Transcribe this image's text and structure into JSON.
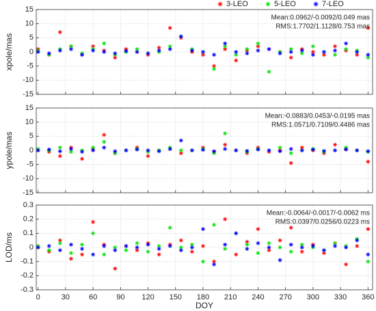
{
  "chart_data": [
    {
      "type": "scatter",
      "ylabel": "xpole/mas",
      "annotations": [
        "Mean:0.0962/-0.0092/0.049 mas",
        "RMS:1.7702/1.1128/0.753 mas"
      ],
      "x": [
        0,
        12,
        24,
        36,
        48,
        60,
        72,
        84,
        96,
        108,
        120,
        132,
        144,
        156,
        168,
        180,
        192,
        204,
        216,
        228,
        240,
        252,
        264,
        276,
        288,
        300,
        312,
        324,
        336,
        348,
        360
      ],
      "series": [
        {
          "name": "3-LEO",
          "color": "#ff0000",
          "values": [
            1,
            -1,
            7,
            2,
            -1,
            2,
            0.5,
            -2,
            1,
            0,
            -1,
            1.5,
            8.5,
            5,
            0,
            -1,
            -5,
            1,
            -3,
            0.5,
            2,
            1,
            0,
            -2,
            1,
            0,
            -1,
            2,
            0.5,
            -1,
            8.5
          ]
        },
        {
          "name": "5-LEO",
          "color": "#00e000",
          "values": [
            0.5,
            -1,
            1,
            2,
            -0.5,
            1,
            3,
            -1,
            0,
            1,
            -0.5,
            0,
            2,
            5.5,
            1,
            0,
            -6,
            2,
            -1,
            1,
            3,
            -7,
            0,
            1,
            -0.5,
            2,
            0,
            -1,
            1,
            0.5,
            -2
          ]
        },
        {
          "name": "7-LEO",
          "color": "#0000ff",
          "values": [
            0,
            -0.5,
            0.5,
            1,
            -1,
            0.5,
            0,
            -0.5,
            0.3,
            0,
            -0.5,
            0.5,
            1,
            5.5,
            0.5,
            0,
            -1,
            3,
            0,
            -0.5,
            0.5,
            1,
            -0.5,
            0,
            0.5,
            -1,
            0,
            0.5,
            3,
            0,
            -1
          ]
        }
      ],
      "xlim": [
        -2,
        365
      ],
      "xticks": [
        0,
        30,
        60,
        90,
        120,
        150,
        180,
        210,
        240,
        270,
        300,
        330,
        360
      ],
      "ylim": [
        -15,
        15
      ],
      "yticks": [
        -15,
        -10,
        -5,
        0,
        5,
        10,
        15
      ],
      "grid": true,
      "legend": "top-right"
    },
    {
      "type": "scatter",
      "ylabel": "ypole/mas",
      "annotations": [
        "Mean:-0.0883/0.0453/-0.0195 mas",
        "RMS:1.0571/0.7109/0.4486 mas"
      ],
      "x": [
        0,
        12,
        24,
        36,
        48,
        60,
        72,
        84,
        96,
        108,
        120,
        132,
        144,
        156,
        168,
        180,
        192,
        204,
        216,
        228,
        240,
        252,
        264,
        276,
        288,
        300,
        312,
        324,
        336,
        348,
        360
      ],
      "series": [
        {
          "color": "#ff0000",
          "values": [
            0,
            -0.5,
            -2,
            1,
            -3,
            0.5,
            5.5,
            -1,
            0,
            1,
            -2,
            0,
            0.5,
            -1,
            0,
            1,
            -0.5,
            2,
            0,
            -1,
            1,
            -0.5,
            0,
            -4.5,
            1,
            0,
            -1,
            2,
            0.5,
            0,
            -4
          ]
        },
        {
          "color": "#00e000",
          "values": [
            0.5,
            0,
            1,
            -0.5,
            0,
            1,
            3,
            -1,
            0,
            0.5,
            -0.5,
            0,
            1,
            0,
            0,
            0.5,
            -1,
            6,
            0,
            -0.5,
            0.5,
            0,
            1,
            -1,
            0,
            0.5,
            -0.5,
            0,
            1,
            0,
            -0.5
          ]
        },
        {
          "color": "#0000ff",
          "values": [
            0,
            0.3,
            -0.3,
            0.5,
            -0.5,
            0,
            1,
            -0.3,
            0,
            0.3,
            0,
            -0.3,
            0.5,
            3.5,
            0,
            0.2,
            -0.3,
            0.5,
            0,
            -0.2,
            0.3,
            0,
            -0.3,
            0.5,
            0,
            0.3,
            -0.2,
            0,
            0.3,
            0,
            -0.3
          ]
        }
      ],
      "xlim": [
        -2,
        365
      ],
      "xticks": [
        0,
        30,
        60,
        90,
        120,
        150,
        180,
        210,
        240,
        270,
        300,
        330,
        360
      ],
      "ylim": [
        -15,
        15
      ],
      "yticks": [
        -15,
        -10,
        -5,
        0,
        5,
        10,
        15
      ],
      "grid": true
    },
    {
      "type": "scatter",
      "ylabel": "LOD/ms",
      "xlabel": "DOY",
      "annotations": [
        "Mean:-0.0064/-0.0017/-0.0062 ms",
        "RMS:0.0397/0.0256/0.0223 ms"
      ],
      "x": [
        0,
        12,
        24,
        36,
        48,
        60,
        72,
        84,
        96,
        108,
        120,
        132,
        144,
        156,
        168,
        180,
        192,
        204,
        216,
        228,
        240,
        252,
        264,
        276,
        288,
        300,
        312,
        324,
        336,
        348,
        360
      ],
      "series": [
        {
          "color": "#ff0000",
          "values": [
            0,
            -0.03,
            0.05,
            -0.08,
            -0.05,
            0.18,
            0.02,
            -0.15,
            0.01,
            -0.02,
            0.03,
            -0.05,
            0.02,
            0.05,
            -0.03,
            0.01,
            -0.1,
            0.2,
            -0.05,
            0.04,
            0.13,
            -0.02,
            0.05,
            0.14,
            -0.03,
            0.02,
            -0.04,
            0.03,
            -0.12,
            0.01,
            0.13
          ]
        },
        {
          "color": "#00e000",
          "values": [
            0.01,
            -0.02,
            0.03,
            -0.04,
            0.02,
            0.1,
            -0.05,
            0,
            -0.02,
            0.03,
            -0.03,
            0.01,
            0.14,
            0,
            0.02,
            -0.1,
            0.16,
            -0.01,
            0.1,
            0.02,
            -0.04,
            0.03,
            0,
            -0.03,
            0.02,
            0,
            -0.02,
            0.03,
            0.01,
            0.06,
            -0.1
          ]
        },
        {
          "color": "#0000ff",
          "values": [
            0,
            0.01,
            -0.02,
            0.02,
            -0.01,
            -0.05,
            0.01,
            -0.02,
            0.01,
            0,
            0.02,
            -0.01,
            0.01,
            -0.02,
            0,
            0.13,
            -0.12,
            0.02,
            0.1,
            -0.01,
            0.03,
            0,
            -0.09,
            0.02,
            0,
            0.01,
            -0.02,
            0.01,
            0,
            0.05,
            -0.05
          ]
        }
      ],
      "xlim": [
        -2,
        365
      ],
      "xticks": [
        0,
        30,
        60,
        90,
        120,
        150,
        180,
        210,
        240,
        270,
        300,
        330,
        360
      ],
      "ylim": [
        -0.3,
        0.3
      ],
      "yticks": [
        -0.3,
        -0.2,
        -0.1,
        0,
        0.1,
        0.2,
        0.3
      ],
      "grid": true
    }
  ]
}
